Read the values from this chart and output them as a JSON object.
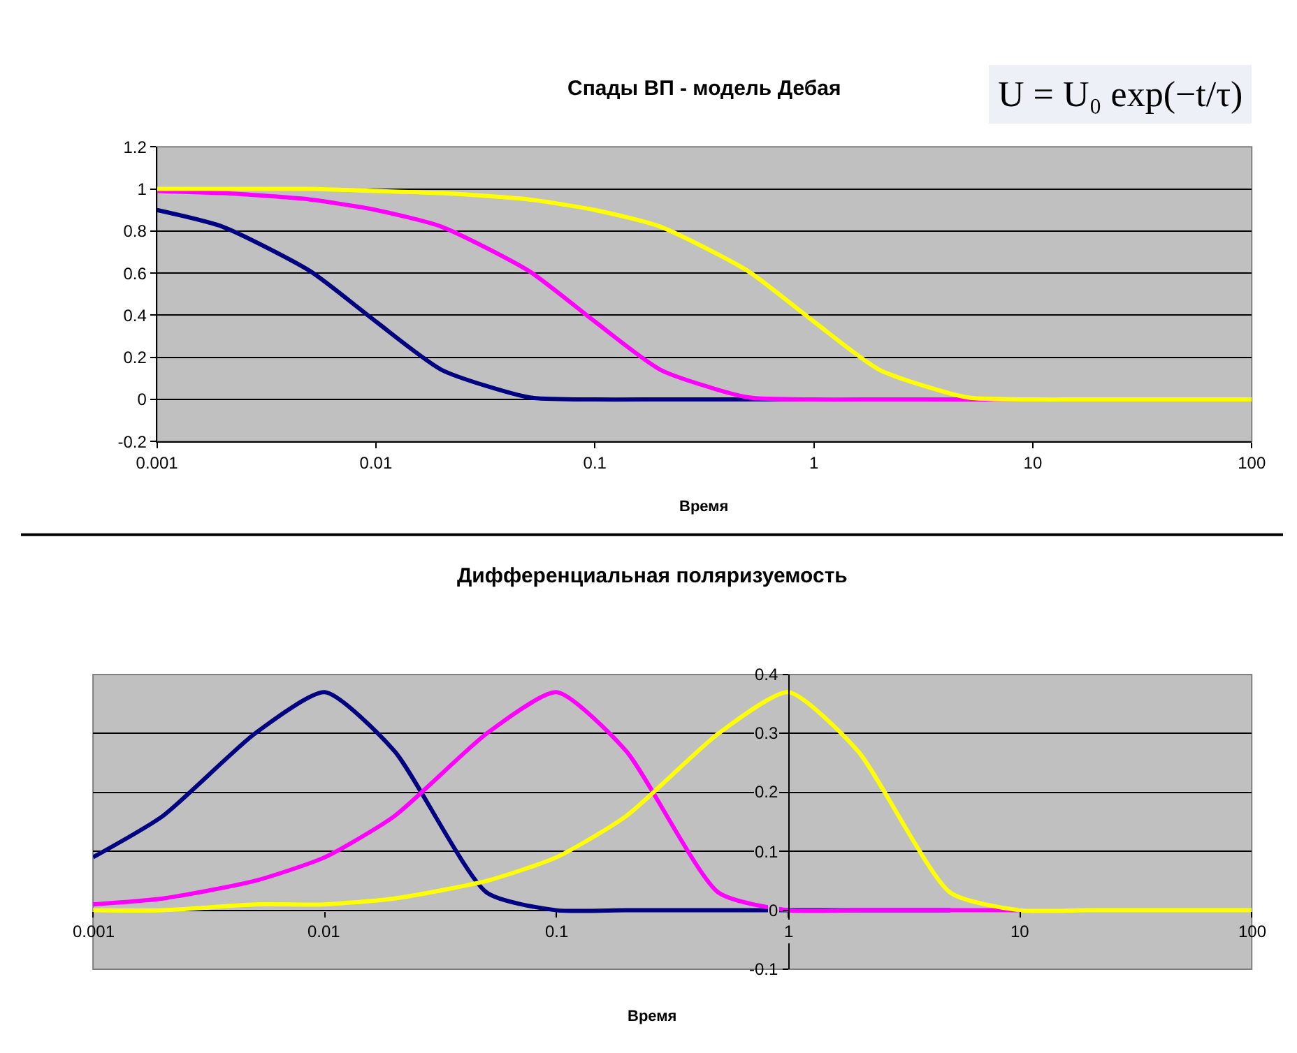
{
  "chart_data": [
    {
      "type": "line",
      "title": "Спады ВП - модель Дебая",
      "xlabel": "Время",
      "log": "x",
      "grid": "y",
      "marker": "none",
      "line_style": "solid",
      "x": [
        0.001,
        0.002,
        0.005,
        0.01,
        0.02,
        0.05,
        0.1,
        0.2,
        0.5,
        1,
        2,
        5,
        10,
        20,
        50,
        100
      ],
      "xlim": [
        0.001,
        100
      ],
      "xticks": [
        0.001,
        0.01,
        0.1,
        1,
        10,
        100
      ],
      "ylim": [
        -0.2,
        1.2
      ],
      "yticks": [
        -0.2,
        0,
        0.2,
        0.4,
        0.6,
        0.8,
        1,
        1.2
      ],
      "annotations": [
        "U = U₀ exp(−t/τ)"
      ],
      "series": [
        {
          "color": "#000080",
          "values": [
            0.9,
            0.82,
            0.61,
            0.37,
            0.14,
            0.01,
            0,
            0,
            0,
            0,
            null,
            null,
            null,
            null,
            null,
            null
          ]
        },
        {
          "color": "#ff00ff",
          "values": [
            0.99,
            0.98,
            0.95,
            0.9,
            0.82,
            0.61,
            0.37,
            0.14,
            0.01,
            0,
            0,
            0,
            0,
            null,
            null,
            null
          ]
        },
        {
          "color": "#ffff00",
          "values": [
            1,
            1,
            1,
            0.99,
            0.98,
            0.95,
            0.9,
            0.82,
            0.61,
            0.37,
            0.14,
            0.01,
            0,
            0,
            0,
            0
          ]
        }
      ]
    },
    {
      "type": "line",
      "title": "Дифференциальная поляризуемость",
      "xlabel": "Время",
      "log": "x",
      "grid": "y",
      "marker": "none",
      "line_style": "solid",
      "x": [
        0.001,
        0.002,
        0.005,
        0.01,
        0.02,
        0.05,
        0.1,
        0.2,
        0.5,
        1,
        2,
        5,
        10,
        20,
        50,
        100
      ],
      "xlim": [
        0.001,
        100
      ],
      "xticks": [
        0.001,
        0.01,
        0.1,
        1,
        10,
        100
      ],
      "ylim": [
        -0.1,
        0.4
      ],
      "yticks": [
        -0.1,
        0,
        0.1,
        0.2,
        0.3,
        0.4
      ],
      "series": [
        {
          "color": "#000080",
          "values": [
            0.09,
            0.16,
            0.3,
            0.37,
            0.27,
            0.03,
            0,
            0,
            0,
            0,
            0,
            0,
            null,
            null,
            null,
            null
          ]
        },
        {
          "color": "#ff00ff",
          "values": [
            0.01,
            0.02,
            0.05,
            0.09,
            0.16,
            0.3,
            0.37,
            0.27,
            0.03,
            0,
            0,
            0,
            0,
            null,
            null,
            null
          ]
        },
        {
          "color": "#ffff00",
          "values": [
            0,
            0,
            0.01,
            0.01,
            0.02,
            0.05,
            0.09,
            0.16,
            0.3,
            0.37,
            0.27,
            0.03,
            0,
            0,
            0,
            0
          ]
        }
      ]
    }
  ]
}
